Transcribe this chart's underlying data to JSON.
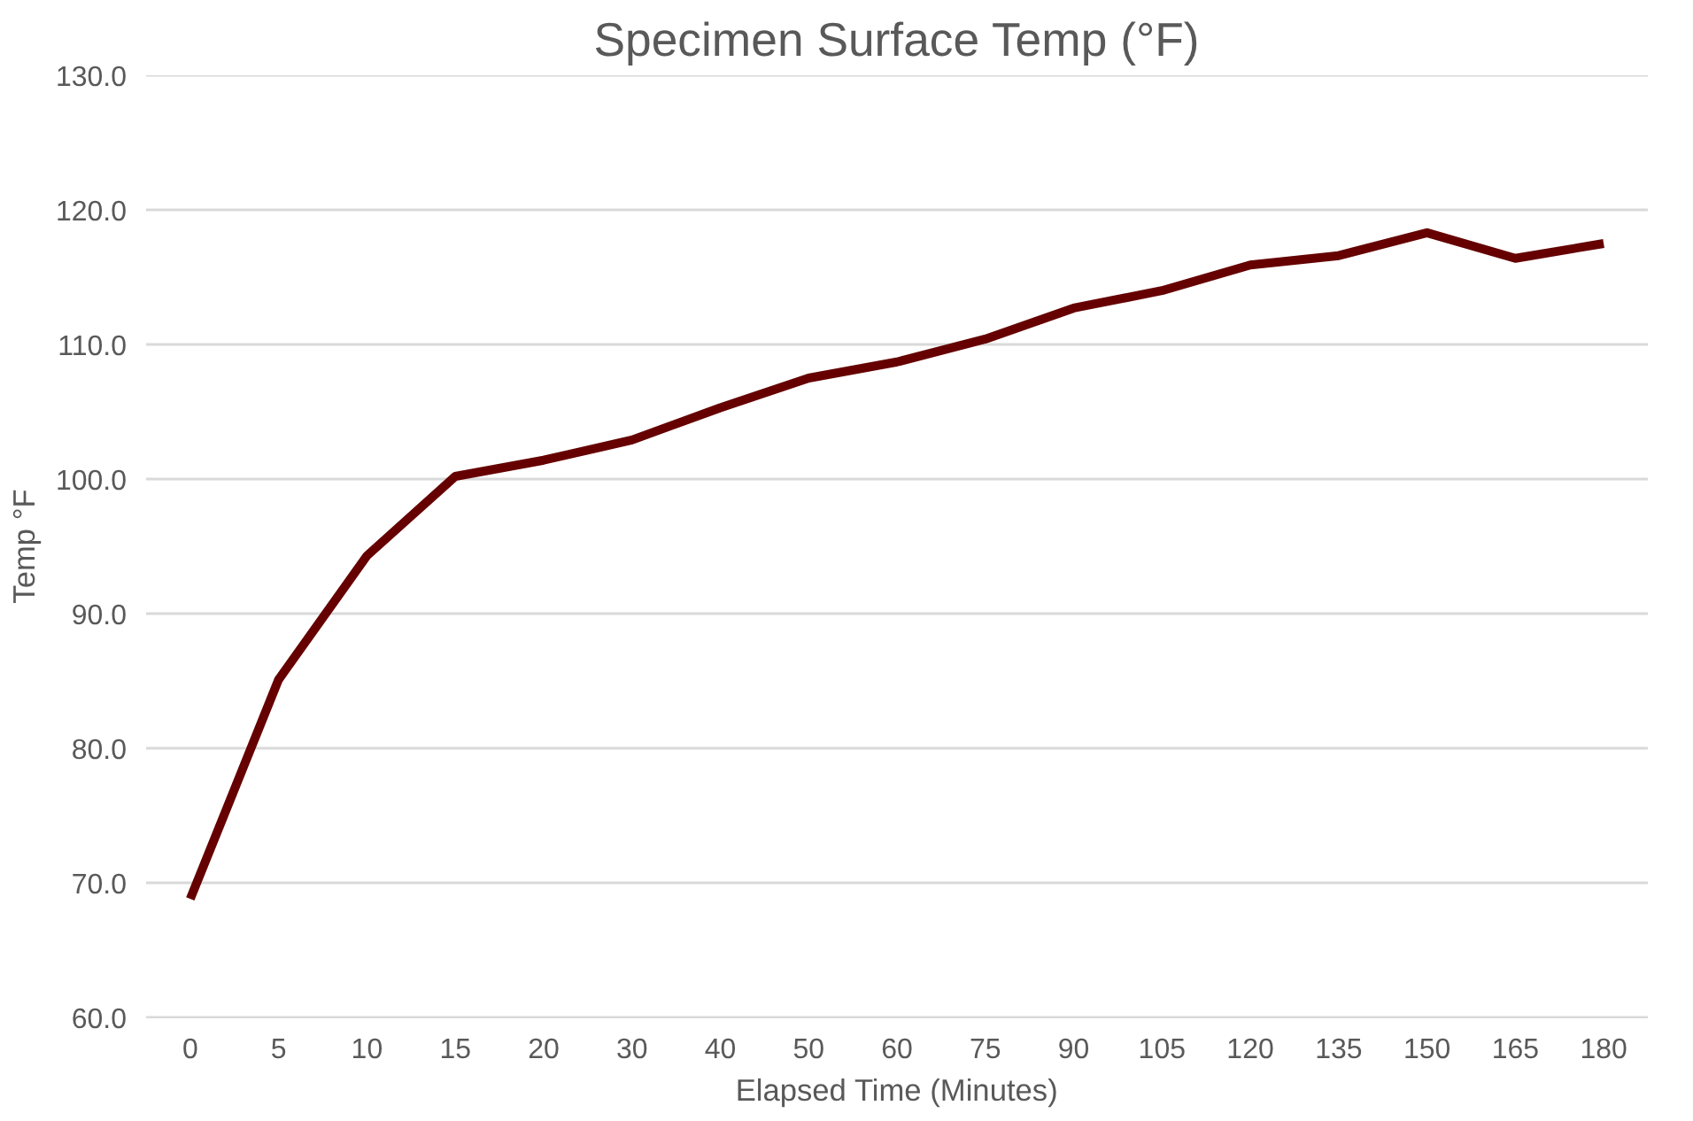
{
  "chart_data": {
    "type": "line",
    "title": "Specimen Surface Temp (°F)",
    "xlabel": "Elapsed Time (Minutes)",
    "ylabel": "Temp °F",
    "categories": [
      "0",
      "5",
      "10",
      "15",
      "20",
      "30",
      "40",
      "50",
      "60",
      "75",
      "90",
      "105",
      "120",
      "135",
      "150",
      "165",
      "180"
    ],
    "series": [
      {
        "color": "#660000",
        "values": [
          68.8,
          85.1,
          94.3,
          100.2,
          101.4,
          102.9,
          105.3,
          107.5,
          108.7,
          110.4,
          112.7,
          114.0,
          115.9,
          116.6,
          118.3,
          116.4,
          117.5
        ]
      }
    ],
    "ylim": [
      60,
      130
    ],
    "yticks": [
      {
        "value": 60,
        "label": "60.0"
      },
      {
        "value": 70,
        "label": "70.0"
      },
      {
        "value": 80,
        "label": "80.0"
      },
      {
        "value": 90,
        "label": "90.0"
      },
      {
        "value": 100,
        "label": "100.0"
      },
      {
        "value": 110,
        "label": "110.0"
      },
      {
        "value": 120,
        "label": "120.0"
      },
      {
        "value": 130,
        "label": "130.0"
      }
    ],
    "grid": "y",
    "marker": "none",
    "line_style": "solid"
  }
}
